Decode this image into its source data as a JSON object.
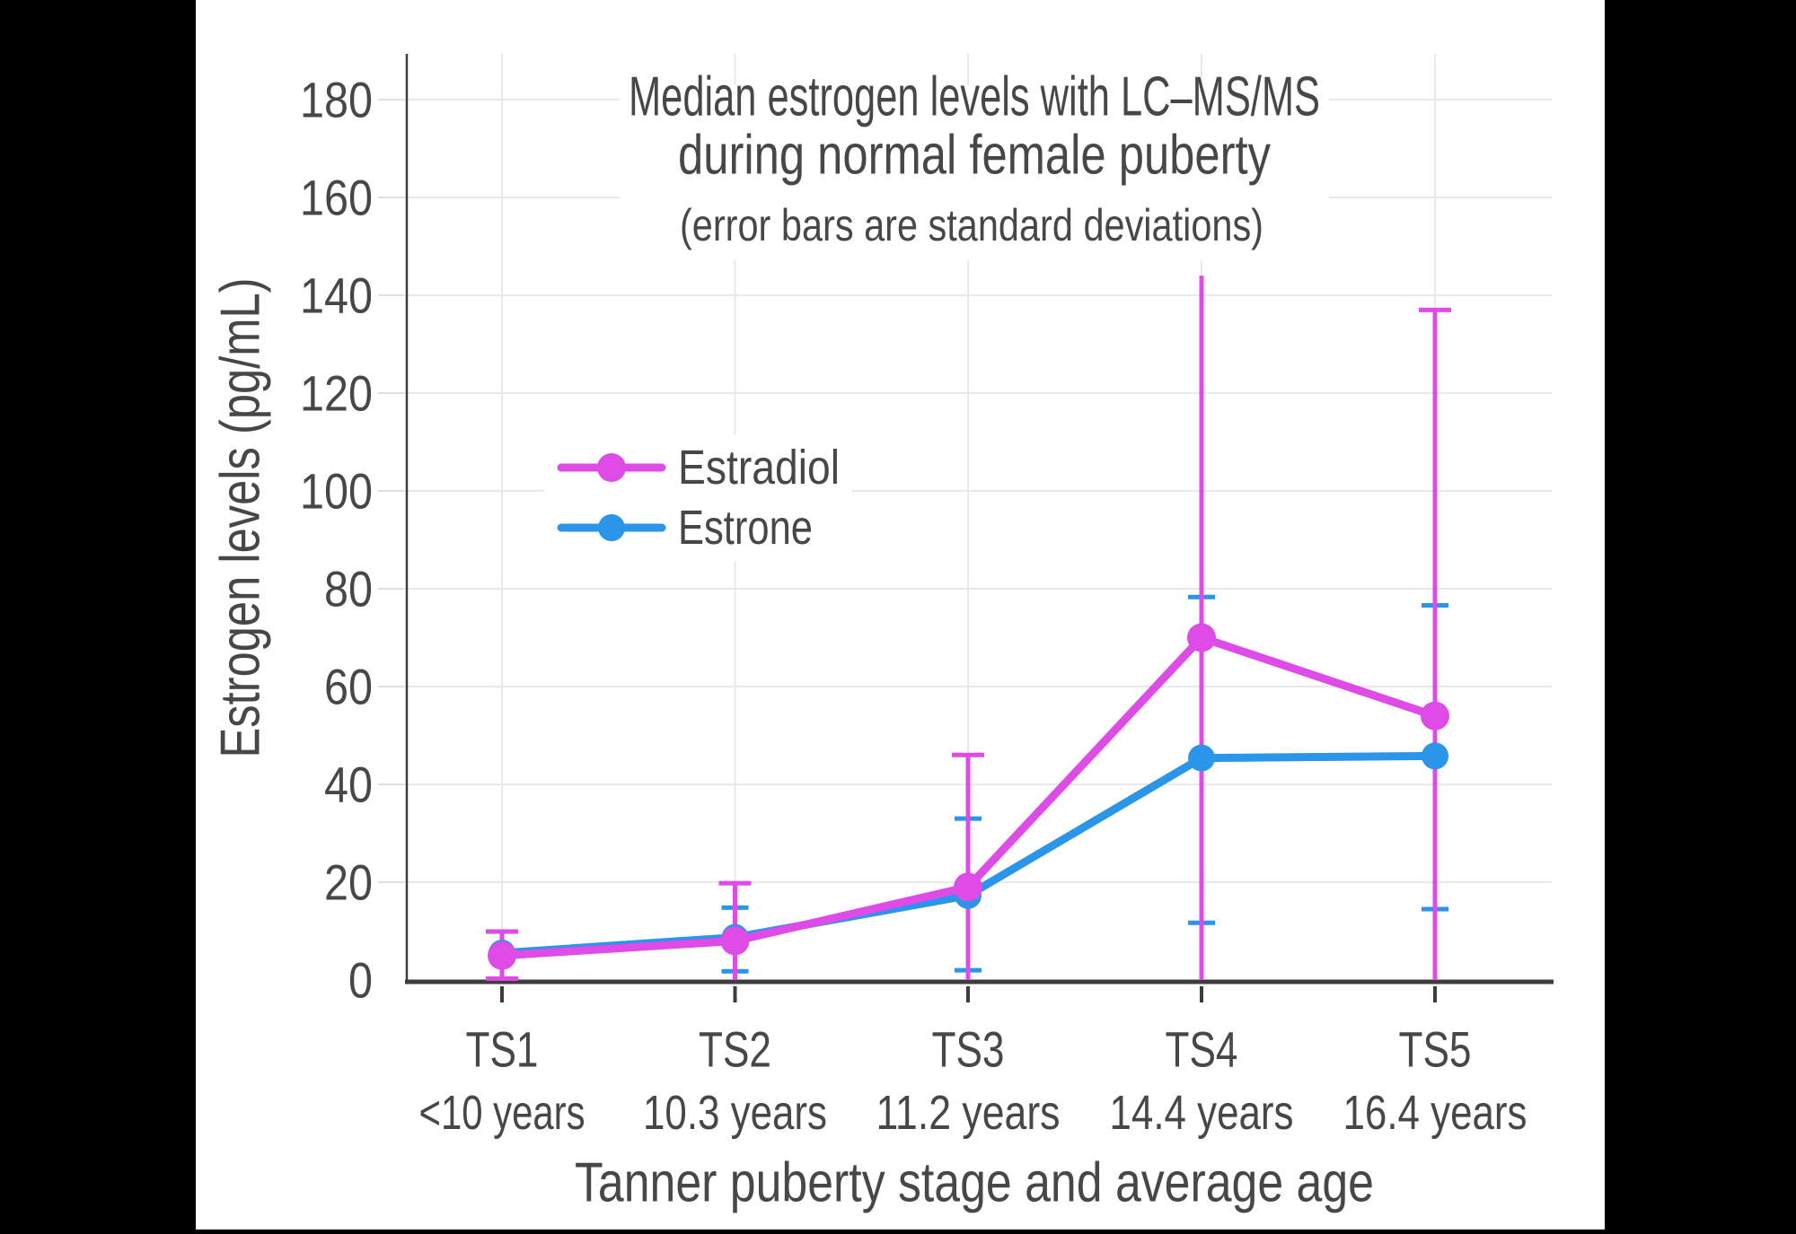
{
  "canvas": {
    "background": "#000000",
    "plot_background": "#ffffff"
  },
  "colors": {
    "text": "#474747",
    "grid": "#e9e9e9",
    "tick_stub": "#e0e0e0",
    "axis": "#3d3d3d"
  },
  "chart_data": {
    "type": "line",
    "title_line1": "Median estrogen levels with LC–MS/MS",
    "title_line2": "during normal female puberty",
    "subtitle": "(error bars are standard deviations)",
    "xlabel": "Tanner puberty stage and average age",
    "ylabel": "Estrogen levels (pg/mL)",
    "ylim": [
      0,
      190
    ],
    "yticks": [
      0,
      20,
      40,
      60,
      80,
      100,
      120,
      140,
      160,
      180
    ],
    "grid": true,
    "legend_position": "inside upper-left",
    "categories": [
      "TS1",
      "TS2",
      "TS3",
      "TS4",
      "TS5"
    ],
    "category_sublabels": [
      "<10 years",
      "10.3 years",
      "11.2 years",
      "14.4 years",
      "16.4 years"
    ],
    "series": [
      {
        "name": "Estradiol",
        "color": "#de4be6",
        "values": [
          5,
          8,
          19,
          70,
          54
        ],
        "err_low": [
          0.3,
          0,
          0,
          0,
          0
        ],
        "err_high": [
          9.9,
          19.8,
          46,
          144,
          137
        ],
        "cap_top": [
          true,
          true,
          true,
          false,
          true
        ],
        "cap_bottom": [
          true,
          false,
          false,
          false,
          false
        ]
      },
      {
        "name": "Estrone",
        "color": "#2b95e9",
        "values": [
          5.5,
          8.7,
          17.3,
          45.4,
          45.8
        ],
        "err_low": [
          null,
          1.8,
          2,
          11.7,
          14.5
        ],
        "err_high": [
          null,
          14.8,
          33,
          78.3,
          76.6
        ],
        "cap_top": [
          false,
          true,
          true,
          true,
          true
        ],
        "cap_bottom": [
          false,
          true,
          true,
          true,
          true
        ]
      }
    ]
  }
}
